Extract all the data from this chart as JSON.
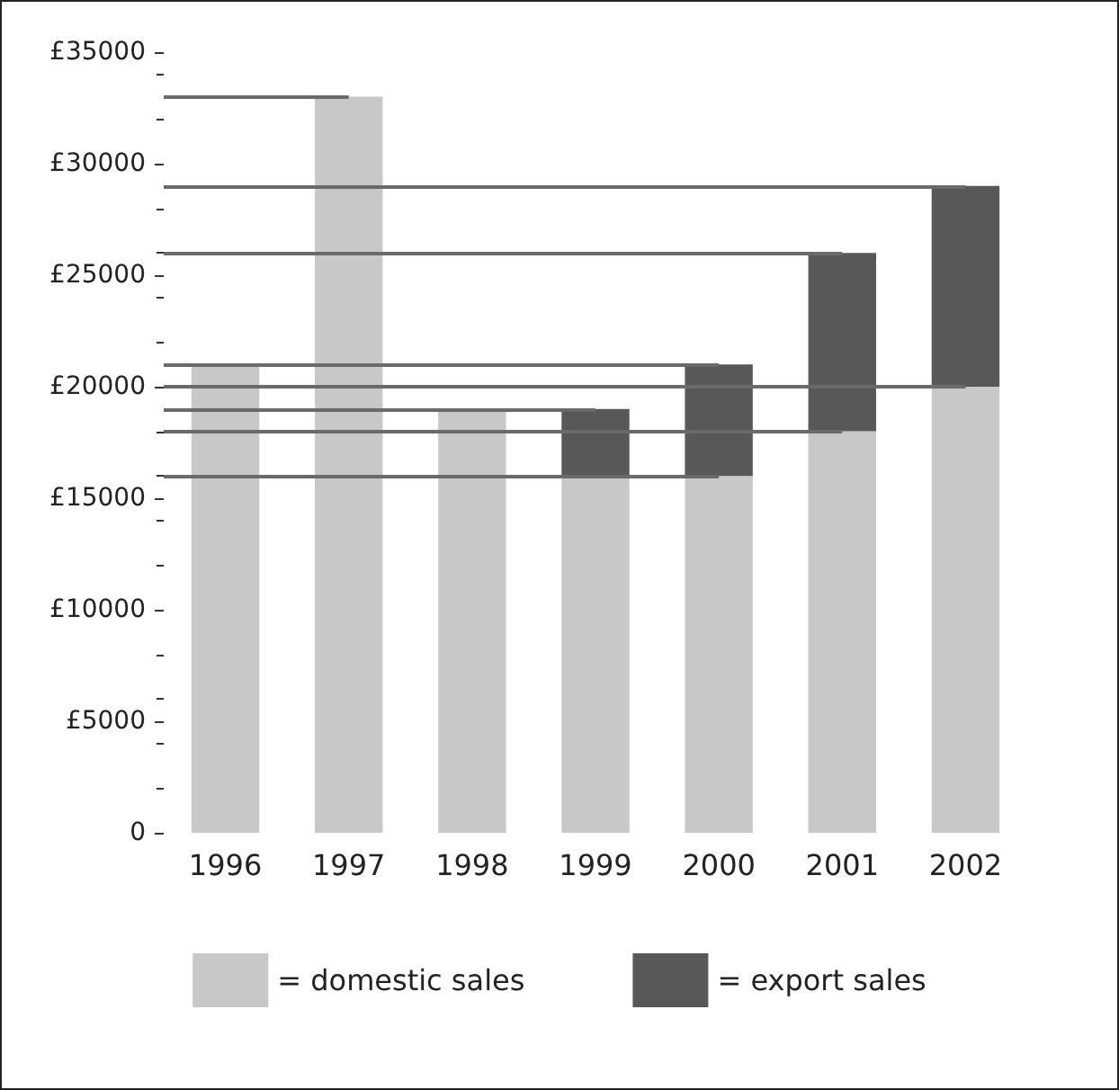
{
  "chart_data": {
    "type": "bar",
    "stacked": true,
    "categories": [
      "1996",
      "1997",
      "1998",
      "1999",
      "2000",
      "2001",
      "2002"
    ],
    "series": [
      {
        "name": "= domestic sales",
        "color": "#c8c8c8",
        "values": [
          21000,
          33000,
          19000,
          16000,
          16000,
          18000,
          20000
        ]
      },
      {
        "name": "= export sales",
        "color": "#585858",
        "values": [
          null,
          null,
          null,
          3000,
          5000,
          8000,
          9000
        ]
      }
    ],
    "ylim": [
      0,
      35000
    ],
    "yticks": [
      {
        "value": 0,
        "label": "0"
      },
      {
        "value": 5000,
        "label": "£5000"
      },
      {
        "value": 10000,
        "label": "£10000"
      },
      {
        "value": 15000,
        "label": "£15000"
      },
      {
        "value": 20000,
        "label": "£20000"
      },
      {
        "value": 25000,
        "label": "£25000"
      },
      {
        "value": 30000,
        "label": "£30000"
      },
      {
        "value": 35000,
        "label": "£35000"
      }
    ],
    "ref_lines": [
      {
        "axis": "y",
        "value": 33000,
        "color": "#6a6a6a"
      },
      {
        "axis": "y",
        "value": 29000,
        "color": "#6a6a6a"
      },
      {
        "axis": "y",
        "value": 26000,
        "color": "#6a6a6a"
      },
      {
        "axis": "y",
        "value": 21000,
        "color": "#6a6a6a"
      },
      {
        "axis": "y",
        "value": 20000,
        "color": "#6a6a6a"
      },
      {
        "axis": "y",
        "value": 19000,
        "color": "#6a6a6a"
      },
      {
        "axis": "y",
        "value": 18000,
        "color": "#6a6a6a"
      },
      {
        "axis": "y",
        "value": 16000,
        "color": "#6a6a6a"
      }
    ],
    "grid": false,
    "legend": "bottom"
  }
}
